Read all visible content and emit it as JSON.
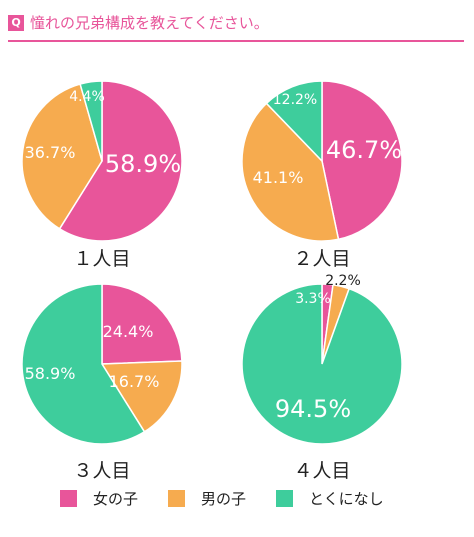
{
  "header": {
    "badge": "Q",
    "title": "憧れの兄弟構成を教えてください。"
  },
  "colors": {
    "girl": "#e8559a",
    "boy": "#f6ab4f",
    "none": "#3ecd9c"
  },
  "chart_data": [
    {
      "type": "pie",
      "label": "１人目",
      "slices": [
        {
          "category": "女の子",
          "value": 58.9,
          "label": "58.9%"
        },
        {
          "category": "男の子",
          "value": 36.7,
          "label": "36.7%"
        },
        {
          "category": "とくになし",
          "value": 4.4,
          "label": "4.4%"
        }
      ]
    },
    {
      "type": "pie",
      "label": "２人目",
      "slices": [
        {
          "category": "女の子",
          "value": 46.7,
          "label": "46.7%"
        },
        {
          "category": "男の子",
          "value": 41.1,
          "label": "41.1%"
        },
        {
          "category": "とくになし",
          "value": 12.2,
          "label": "12.2%"
        }
      ]
    },
    {
      "type": "pie",
      "label": "３人目",
      "slices": [
        {
          "category": "女の子",
          "value": 24.4,
          "label": "24.4%"
        },
        {
          "category": "男の子",
          "value": 16.7,
          "label": "16.7%"
        },
        {
          "category": "とくになし",
          "value": 58.9,
          "label": "58.9%"
        }
      ]
    },
    {
      "type": "pie",
      "label": "４人目",
      "slices": [
        {
          "category": "女の子",
          "value": 2.2,
          "label": "2.2%"
        },
        {
          "category": "男の子",
          "value": 3.3,
          "label": "3.3%"
        },
        {
          "category": "とくになし",
          "value": 94.5,
          "label": "94.5%"
        }
      ]
    }
  ],
  "legend": [
    {
      "label": "女の子",
      "color": "#e8559a"
    },
    {
      "label": "男の子",
      "color": "#f6ab4f"
    },
    {
      "label": "とくになし",
      "color": "#3ecd9c"
    }
  ]
}
